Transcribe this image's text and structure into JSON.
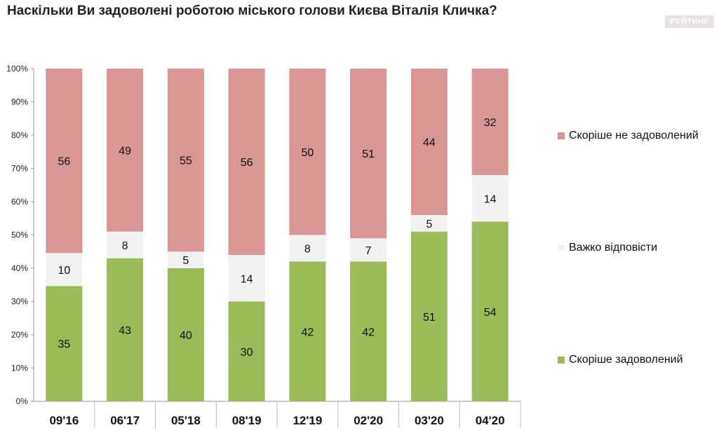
{
  "title": "Наскільки Ви задоволені роботою міського голови Києва Віталія Кличка?",
  "brand": "РЕЙТИНГ",
  "chart_data": {
    "type": "bar",
    "stacked": true,
    "categories": [
      "09'16",
      "06'17",
      "05'18",
      "08'19",
      "12'19",
      "02'20",
      "03'20",
      "04'20"
    ],
    "series": [
      {
        "name": "Скоріше задоволений",
        "color": "#9bbb59",
        "values": [
          35,
          43,
          40,
          30,
          42,
          42,
          51,
          54
        ]
      },
      {
        "name": "Важко відповісти",
        "color": "#f2f2f2",
        "values": [
          10,
          8,
          5,
          14,
          8,
          7,
          5,
          14
        ]
      },
      {
        "name": "Скоріше не задоволений",
        "color": "#d99694",
        "values": [
          56,
          49,
          55,
          56,
          50,
          51,
          44,
          32
        ]
      }
    ],
    "y_ticks": [
      "0%",
      "10%",
      "20%",
      "30%",
      "40%",
      "50%",
      "60%",
      "70%",
      "80%",
      "90%",
      "100%"
    ],
    "ylim": [
      0,
      100
    ],
    "normalized_percent": true,
    "legend_position": "right",
    "grid": false
  }
}
